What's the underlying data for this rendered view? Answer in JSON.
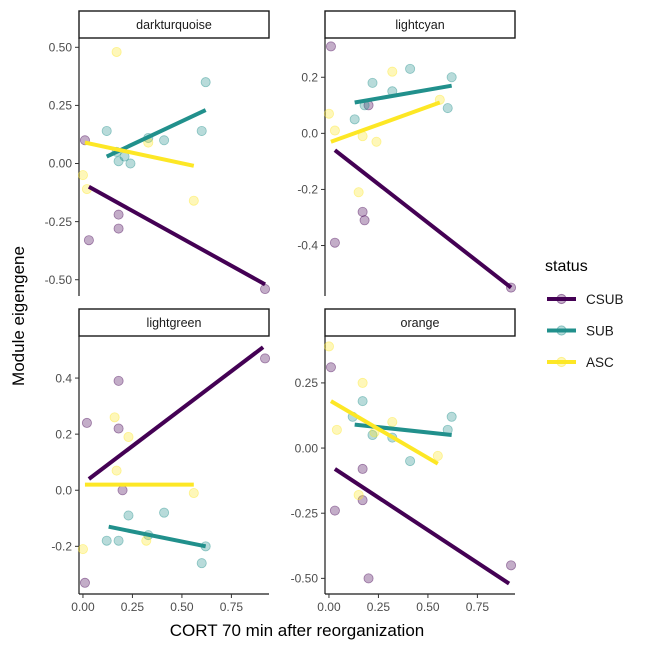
{
  "chart_data": {
    "type": "scatter",
    "xlabel": "CORT 70 min after reorganization",
    "ylabel": "Module eigengene",
    "xlim": [
      -0.02,
      0.94
    ],
    "x_ticks": [
      0.0,
      0.25,
      0.5,
      0.75
    ],
    "x_tick_labels": [
      "0.00",
      "0.25",
      "0.50",
      "0.75"
    ],
    "grid": false,
    "legend": {
      "title": "status",
      "placement": "right",
      "entries": [
        {
          "name": "CSUB",
          "color": "#440154"
        },
        {
          "name": "SUB",
          "color": "#21908C"
        },
        {
          "name": "ASC",
          "color": "#FDE725"
        }
      ]
    },
    "facets": [
      {
        "title": "darkturquoise",
        "ylim": [
          -0.57,
          0.54
        ],
        "y_ticks": [
          -0.5,
          -0.25,
          0.0,
          0.25,
          0.5
        ],
        "y_tick_labels": [
          "-0.50",
          "-0.25",
          "0.00",
          "0.25",
          "0.50"
        ],
        "series": [
          {
            "name": "CSUB",
            "points": [
              [
                0.01,
                0.1
              ],
              [
                0.03,
                -0.33
              ],
              [
                0.18,
                -0.22
              ],
              [
                0.18,
                -0.28
              ],
              [
                0.92,
                -0.54
              ]
            ],
            "fit": [
              [
                0.03,
                -0.1
              ],
              [
                0.92,
                -0.52
              ]
            ]
          },
          {
            "name": "SUB",
            "points": [
              [
                0.12,
                0.14
              ],
              [
                0.17,
                0.05
              ],
              [
                0.18,
                0.01
              ],
              [
                0.21,
                0.03
              ],
              [
                0.24,
                0.0
              ],
              [
                0.33,
                0.11
              ],
              [
                0.41,
                0.1
              ],
              [
                0.6,
                0.14
              ],
              [
                0.62,
                0.35
              ]
            ],
            "fit": [
              [
                0.12,
                0.03
              ],
              [
                0.62,
                0.23
              ]
            ]
          },
          {
            "name": "ASC",
            "points": [
              [
                0.0,
                -0.05
              ],
              [
                0.02,
                -0.11
              ],
              [
                0.17,
                0.48
              ],
              [
                0.33,
                0.09
              ],
              [
                0.56,
                -0.16
              ]
            ],
            "fit": [
              [
                0.01,
                0.09
              ],
              [
                0.56,
                -0.01
              ]
            ]
          }
        ]
      },
      {
        "title": "lightcyan",
        "ylim": [
          -0.58,
          0.34
        ],
        "y_ticks": [
          -0.4,
          -0.2,
          0.0,
          0.2
        ],
        "y_tick_labels": [
          "-0.4",
          "-0.2",
          "0.0",
          "0.2"
        ],
        "series": [
          {
            "name": "CSUB",
            "points": [
              [
                0.01,
                0.31
              ],
              [
                0.03,
                -0.39
              ],
              [
                0.17,
                -0.28
              ],
              [
                0.18,
                -0.31
              ],
              [
                0.2,
                0.1
              ],
              [
                0.92,
                -0.55
              ]
            ],
            "fit": [
              [
                0.03,
                -0.06
              ],
              [
                0.92,
                -0.55
              ]
            ]
          },
          {
            "name": "SUB",
            "points": [
              [
                0.13,
                0.05
              ],
              [
                0.18,
                0.1
              ],
              [
                0.22,
                0.18
              ],
              [
                0.32,
                0.15
              ],
              [
                0.41,
                0.23
              ],
              [
                0.6,
                0.09
              ],
              [
                0.62,
                0.2
              ]
            ],
            "fit": [
              [
                0.13,
                0.11
              ],
              [
                0.62,
                0.17
              ]
            ]
          },
          {
            "name": "ASC",
            "points": [
              [
                0.0,
                0.07
              ],
              [
                0.03,
                0.01
              ],
              [
                0.15,
                -0.21
              ],
              [
                0.17,
                -0.01
              ],
              [
                0.24,
                -0.03
              ],
              [
                0.32,
                0.22
              ],
              [
                0.56,
                0.12
              ]
            ],
            "fit": [
              [
                0.01,
                -0.03
              ],
              [
                0.56,
                0.11
              ]
            ]
          }
        ]
      },
      {
        "title": "lightgreen",
        "ylim": [
          -0.37,
          0.55
        ],
        "y_ticks": [
          -0.2,
          0.0,
          0.2,
          0.4
        ],
        "y_tick_labels": [
          "-0.2",
          "0.0",
          "0.2",
          "0.4"
        ],
        "series": [
          {
            "name": "CSUB",
            "points": [
              [
                0.01,
                -0.33
              ],
              [
                0.02,
                0.24
              ],
              [
                0.18,
                0.39
              ],
              [
                0.18,
                0.22
              ],
              [
                0.2,
                0.0
              ],
              [
                0.92,
                0.47
              ]
            ],
            "fit": [
              [
                0.03,
                0.04
              ],
              [
                0.91,
                0.51
              ]
            ]
          },
          {
            "name": "SUB",
            "points": [
              [
                0.12,
                -0.18
              ],
              [
                0.18,
                -0.18
              ],
              [
                0.23,
                -0.09
              ],
              [
                0.33,
                -0.16
              ],
              [
                0.41,
                -0.08
              ],
              [
                0.6,
                -0.26
              ],
              [
                0.62,
                -0.2
              ]
            ],
            "fit": [
              [
                0.13,
                -0.13
              ],
              [
                0.62,
                -0.2
              ]
            ]
          },
          {
            "name": "ASC",
            "points": [
              [
                0.0,
                -0.21
              ],
              [
                0.16,
                0.26
              ],
              [
                0.17,
                0.07
              ],
              [
                0.23,
                0.19
              ],
              [
                0.32,
                -0.18
              ],
              [
                0.56,
                -0.01
              ]
            ],
            "fit": [
              [
                0.01,
                0.02
              ],
              [
                0.56,
                0.02
              ]
            ]
          }
        ]
      },
      {
        "title": "orange",
        "ylim": [
          -0.56,
          0.43
        ],
        "y_ticks": [
          -0.5,
          -0.25,
          0.0,
          0.25
        ],
        "y_tick_labels": [
          "-0.50",
          "-0.25",
          "0.00",
          "0.25"
        ],
        "series": [
          {
            "name": "CSUB",
            "points": [
              [
                0.01,
                0.31
              ],
              [
                0.03,
                -0.24
              ],
              [
                0.17,
                -0.08
              ],
              [
                0.17,
                -0.2
              ],
              [
                0.2,
                -0.5
              ],
              [
                0.92,
                -0.45
              ]
            ],
            "fit": [
              [
                0.03,
                -0.08
              ],
              [
                0.91,
                -0.52
              ]
            ]
          },
          {
            "name": "SUB",
            "points": [
              [
                0.12,
                0.12
              ],
              [
                0.17,
                0.18
              ],
              [
                0.22,
                0.05
              ],
              [
                0.32,
                0.04
              ],
              [
                0.41,
                -0.05
              ],
              [
                0.6,
                0.07
              ],
              [
                0.62,
                0.12
              ]
            ],
            "fit": [
              [
                0.13,
                0.09
              ],
              [
                0.62,
                0.05
              ]
            ]
          },
          {
            "name": "ASC",
            "points": [
              [
                0.0,
                0.39
              ],
              [
                0.04,
                0.07
              ],
              [
                0.15,
                -0.18
              ],
              [
                0.17,
                0.25
              ],
              [
                0.23,
                0.06
              ],
              [
                0.32,
                0.1
              ],
              [
                0.55,
                -0.03
              ]
            ],
            "fit": [
              [
                0.01,
                0.18
              ],
              [
                0.55,
                -0.06
              ]
            ]
          }
        ]
      }
    ]
  }
}
